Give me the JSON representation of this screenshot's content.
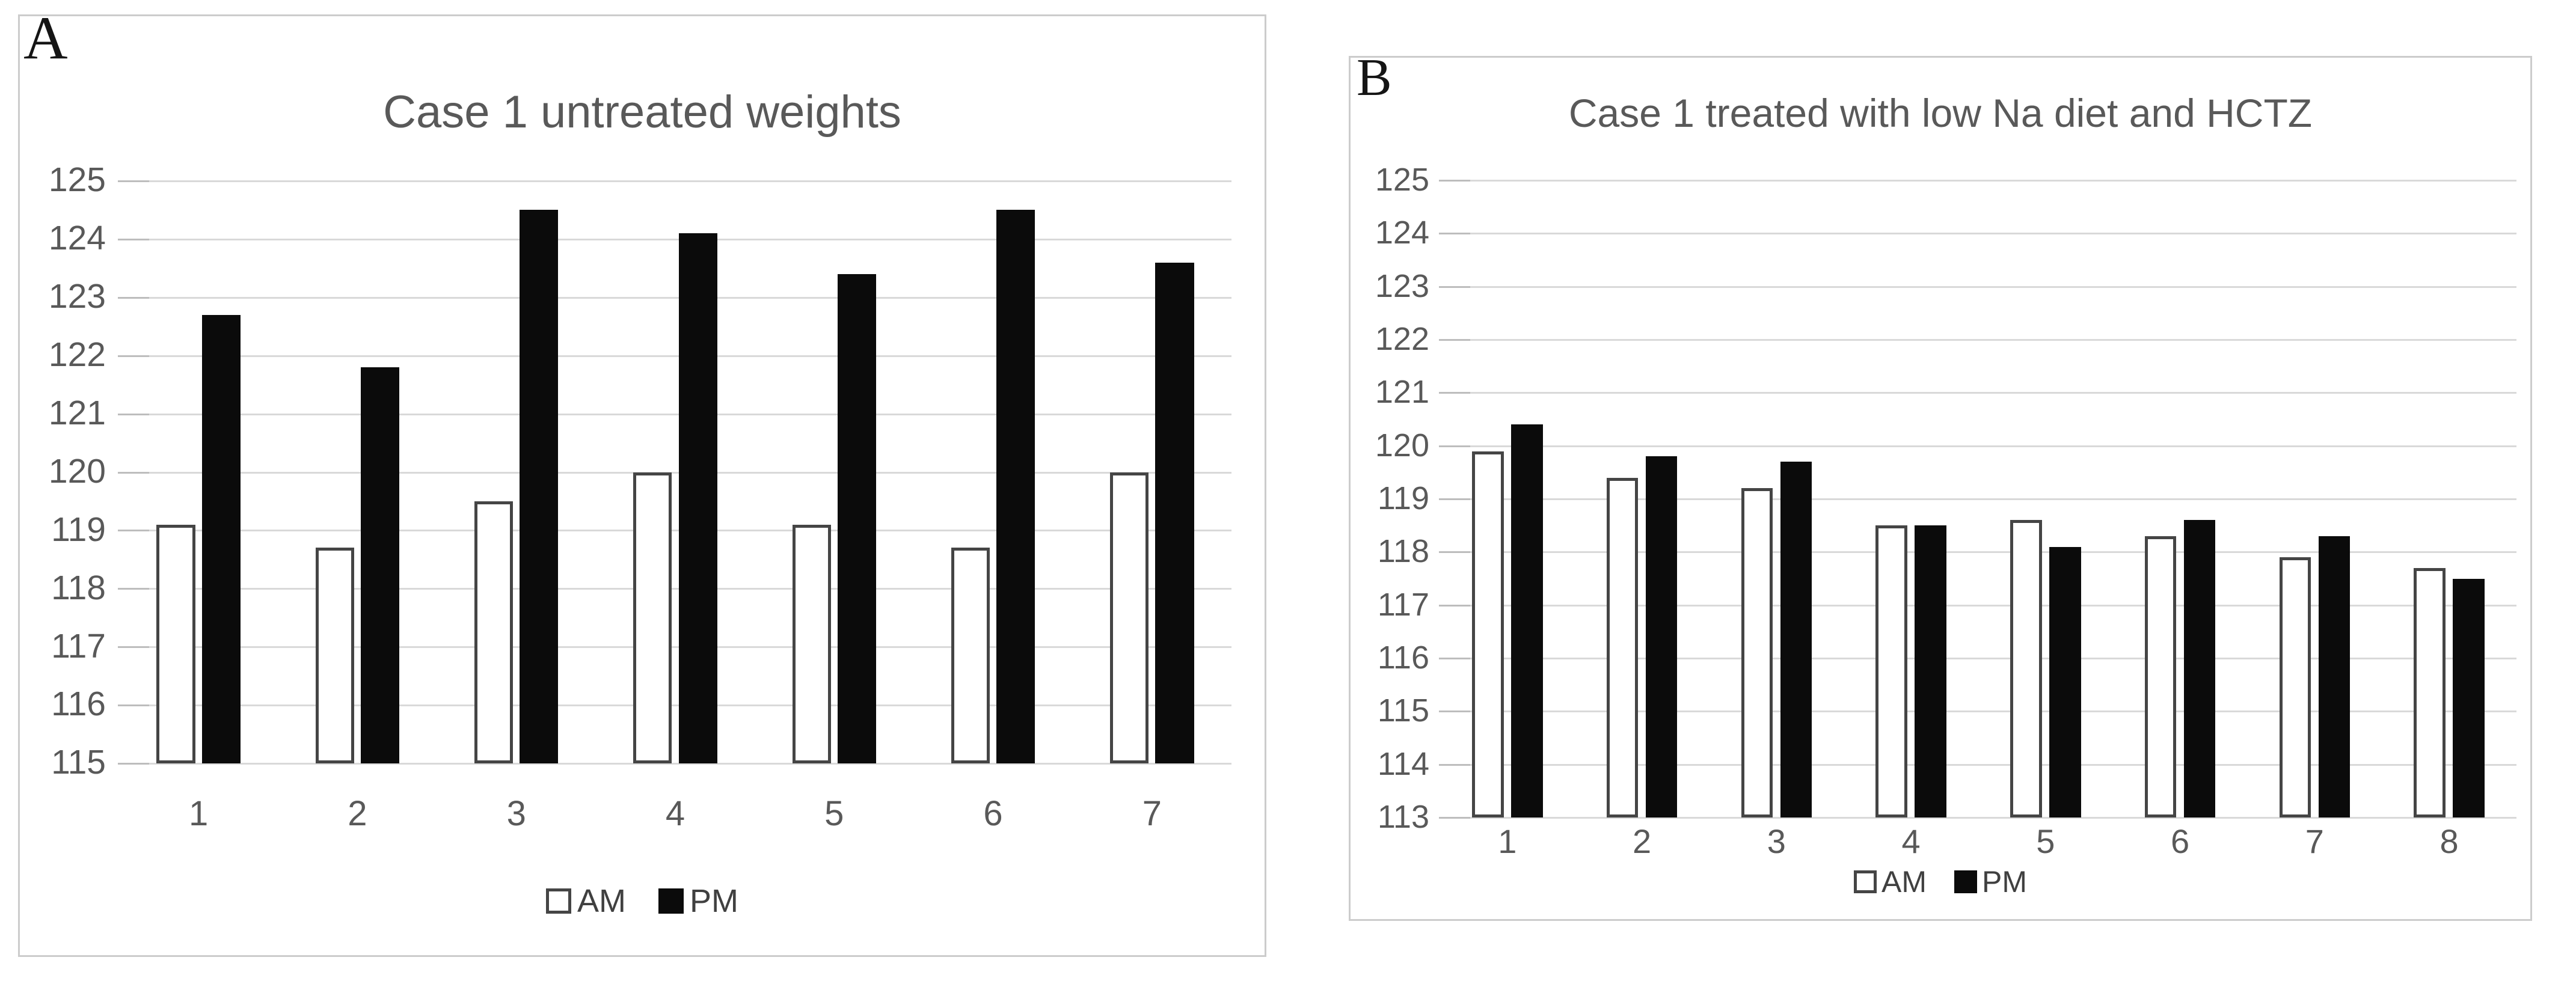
{
  "figure": {
    "background": "#ffffff"
  },
  "chart_data": [
    {
      "panel_label": "A",
      "type": "bar",
      "title": "Case 1 untreated weights",
      "title_color": "#595959",
      "tick_color": "#595959",
      "grid_color": "#d9d9d9",
      "tick_stub_color": "#bdbdbd",
      "panel_border_color": "#cccccc",
      "categories": [
        "1",
        "2",
        "3",
        "4",
        "5",
        "6",
        "7"
      ],
      "series": [
        {
          "name": "AM",
          "fill": "#ffffff",
          "stroke": "#454545",
          "values": [
            119.1,
            118.7,
            119.5,
            120,
            119.1,
            118.7,
            120
          ]
        },
        {
          "name": "PM",
          "fill": "#0b0b0b",
          "stroke": "#0b0b0b",
          "values": [
            122.7,
            121.8,
            124.5,
            124.1,
            123.4,
            124.5,
            123.6
          ]
        }
      ],
      "ylim": [
        115,
        125
      ],
      "ytick_step": 1,
      "yticks": [
        "125",
        "124",
        "123",
        "122",
        "121",
        "120",
        "119",
        "118",
        "117",
        "116",
        "115"
      ],
      "grid": true,
      "legend_position": "bottom",
      "legend_labels": [
        "AM",
        "PM"
      ]
    },
    {
      "panel_label": "B",
      "type": "bar",
      "title": "Case 1 treated with low Na diet and HCTZ",
      "title_color": "#595959",
      "tick_color": "#595959",
      "grid_color": "#d9d9d9",
      "tick_stub_color": "#bdbdbd",
      "panel_border_color": "#cccccc",
      "categories": [
        "1",
        "2",
        "3",
        "4",
        "5",
        "6",
        "7",
        "8"
      ],
      "series": [
        {
          "name": "AM",
          "fill": "#ffffff",
          "stroke": "#454545",
          "values": [
            119.9,
            119.4,
            119.2,
            118.5,
            118.6,
            118.3,
            117.9,
            117.7
          ]
        },
        {
          "name": "PM",
          "fill": "#0b0b0b",
          "stroke": "#0b0b0b",
          "values": [
            120.4,
            119.8,
            119.7,
            118.5,
            118.1,
            118.6,
            118.3,
            117.5
          ]
        }
      ],
      "ylim": [
        113,
        125
      ],
      "ytick_step": 1,
      "yticks": [
        "125",
        "124",
        "123",
        "122",
        "121",
        "120",
        "119",
        "118",
        "117",
        "116",
        "115",
        "114",
        "113"
      ],
      "grid": true,
      "legend_position": "bottom",
      "legend_labels": [
        "AM",
        "PM"
      ]
    }
  ]
}
